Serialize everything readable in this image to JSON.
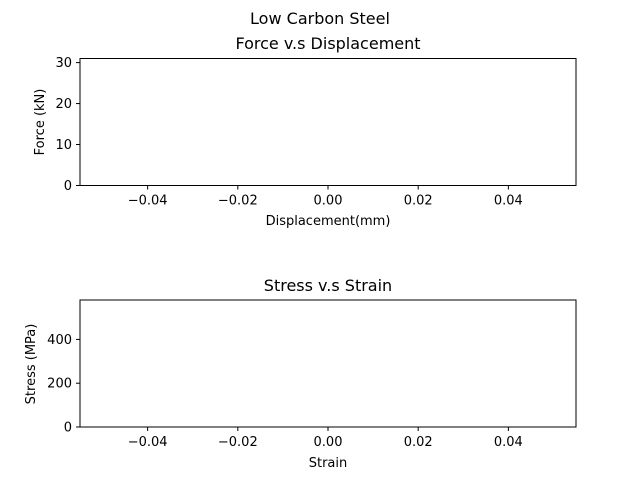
{
  "figure": {
    "suptitle": "Low Carbon Steel"
  },
  "chart_data": [
    {
      "type": "line",
      "title": "Force v.s Displacement",
      "xlabel": "Displacement(mm)",
      "ylabel": "Force (kN)",
      "xlim": [
        -0.055,
        0.055
      ],
      "ylim": [
        0,
        31
      ],
      "x_ticks": [
        -0.04,
        -0.02,
        0.0,
        0.02,
        0.04
      ],
      "x_tick_labels": [
        "−0.04",
        "−0.02",
        "0.00",
        "0.02",
        "0.04"
      ],
      "y_ticks": [
        0,
        10,
        20,
        30
      ],
      "y_tick_labels": [
        "0",
        "10",
        "20",
        "30"
      ],
      "grid": false,
      "series": []
    },
    {
      "type": "line",
      "title": "Stress v.s Strain",
      "xlabel": "Strain",
      "ylabel": "Stress (MPa)",
      "xlim": [
        -0.055,
        0.055
      ],
      "ylim": [
        0,
        580
      ],
      "x_ticks": [
        -0.04,
        -0.02,
        0.0,
        0.02,
        0.04
      ],
      "x_tick_labels": [
        "−0.04",
        "−0.02",
        "0.00",
        "0.02",
        "0.04"
      ],
      "y_ticks": [
        0,
        200,
        400
      ],
      "y_tick_labels": [
        "0",
        "200",
        "400"
      ],
      "grid": false,
      "series": []
    }
  ]
}
